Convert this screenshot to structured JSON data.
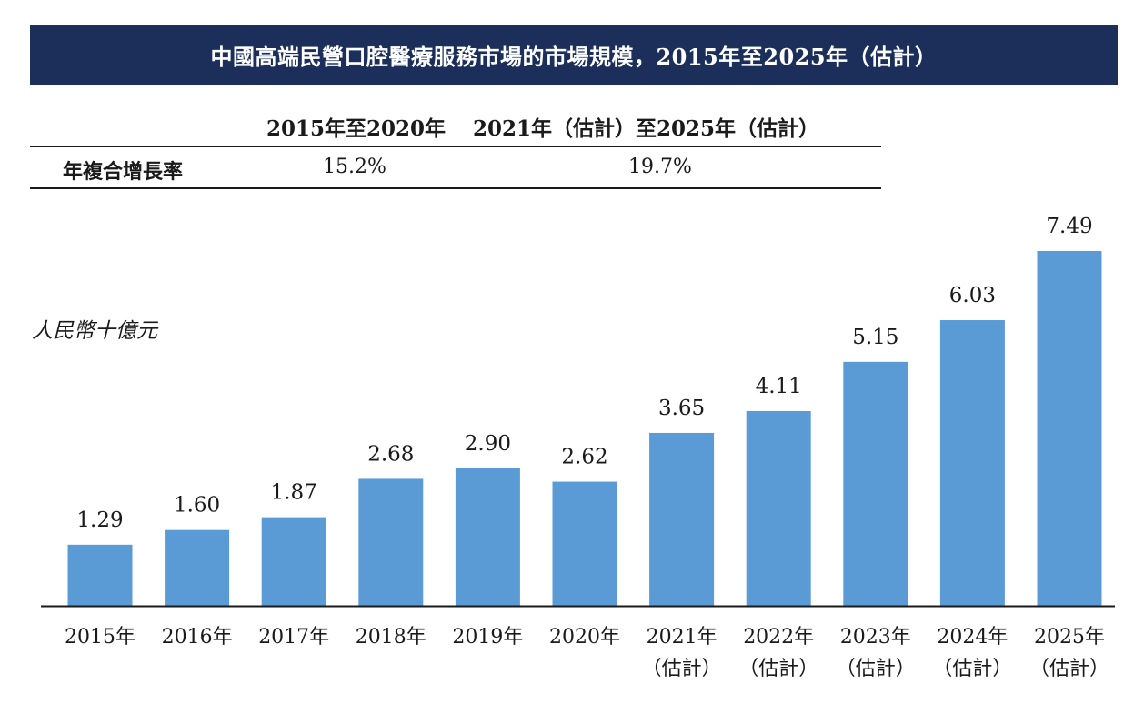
{
  "title": "中國高端民營口腔醫療服務市場的市場規模，2015年至2025年（估計）",
  "cagr": {
    "period1": "2015年至2020年",
    "period2": "2021年（估計）至2025年（估計）",
    "row_label": "年複合增長率",
    "value1": "15.2%",
    "value2": "19.7%"
  },
  "unit_label": "人民幣十億元",
  "colors": {
    "bar": "#5b9bd5",
    "title_bg": "#1b2f5a",
    "axis": "#1a1a1a"
  },
  "chart_data": {
    "type": "bar",
    "categories": [
      [
        "2015年"
      ],
      [
        "2016年"
      ],
      [
        "2017年"
      ],
      [
        "2018年"
      ],
      [
        "2019年"
      ],
      [
        "2020年"
      ],
      [
        "2021年",
        "（估計）"
      ],
      [
        "2022年",
        "（估計）"
      ],
      [
        "2023年",
        "（估計）"
      ],
      [
        "2024年",
        "（估計）"
      ],
      [
        "2025年",
        "（估計）"
      ]
    ],
    "values": [
      1.29,
      1.6,
      1.87,
      2.68,
      2.9,
      2.62,
      3.65,
      4.11,
      5.15,
      6.03,
      7.49
    ],
    "value_labels": [
      "1.29",
      "1.60",
      "1.87",
      "2.68",
      "2.90",
      "2.62",
      "3.65",
      "4.11",
      "5.15",
      "6.03",
      "7.49"
    ],
    "ylabel": "人民幣十億元",
    "ylim": [
      0,
      7.49
    ],
    "grid": false,
    "legend": "none"
  }
}
